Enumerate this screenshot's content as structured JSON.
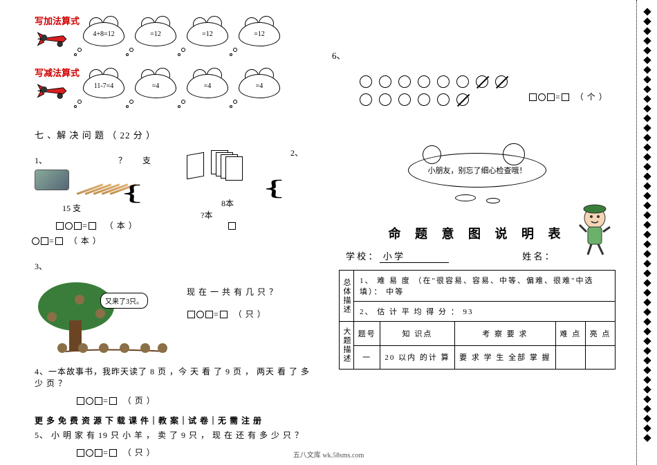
{
  "top": {
    "addition_label": "写加法算式",
    "subtraction_label": "写减法算式",
    "clouds_add": [
      "4+8=12",
      "=12",
      "=12",
      "=12"
    ],
    "clouds_sub": [
      "11-7=4",
      "=4",
      "=4",
      "=4"
    ],
    "plane_color": "#d82020"
  },
  "section7": {
    "title": "七 、解 决 问 题 （ 22 分 ）",
    "p1": {
      "num": "1、",
      "unit_label": "支",
      "given": "15 支",
      "q_mark": "？",
      "eq_suffix_a": "（  本  ）",
      "eq_suffix_b": "（ 本 ）"
    },
    "p2": {
      "num": "2、",
      "books_label": "8本",
      "books_q": "?本"
    },
    "p3": {
      "num": "3、",
      "bubble": "又来了3只。",
      "question": "现 在 一 共 有 几 只 ？",
      "eq_suffix": "（ 只 ）"
    },
    "p4": {
      "text": "4、一本故事书，我昨天读了 8 页 ，今 天 看 了 9 页 ， 两天 看 了 多 少 页 ？",
      "eq_suffix": "（ 页 ）"
    },
    "download": "更 多 免 费 资 源 下 载  课 件｜教 案｜试 卷｜无 需 注 册",
    "p5": {
      "text": "5、 小 明 家 有 19 只 小 羊 ， 卖 了 9 只 ， 现 在 还 有 多 少 只 ？",
      "eq_suffix": "（ 只 ）"
    }
  },
  "right": {
    "p6_num": "6、",
    "p6_eq_suffix": "（ 个 ）",
    "circle_crossed_r1": [
      false,
      false,
      false,
      false,
      false,
      false,
      true,
      true
    ],
    "circle_crossed_r2": [
      false,
      false,
      false,
      false,
      false,
      true
    ],
    "check_text": "小朋友，别忘了细心检查哦！",
    "title": "命 题 意 图 说 明 表",
    "school_label": "学 校 ：",
    "school_value": "小 学",
    "name_label": "姓 名 ：",
    "table": {
      "rowhead1": "总体描述",
      "row1a": "1、 难 易 度 （在\"很容易、容易、中等、偏难、很难\"中选填）： 中等",
      "row1b": "2、 估 计 平 均 得 分 ： 93",
      "rowhead2": "大题描述",
      "headers": [
        "题号",
        "知 识点",
        "考 察 要 求",
        "难 点",
        "亮 点"
      ],
      "row": [
        "一",
        "20 以内 的计 算",
        "要 求 学 生 全部 掌 握",
        "",
        ""
      ]
    }
  },
  "footer": "五八文库 wk.58sms.com",
  "colors": {
    "red": "#d00000",
    "text": "#000000",
    "bg": "#ffffff"
  }
}
